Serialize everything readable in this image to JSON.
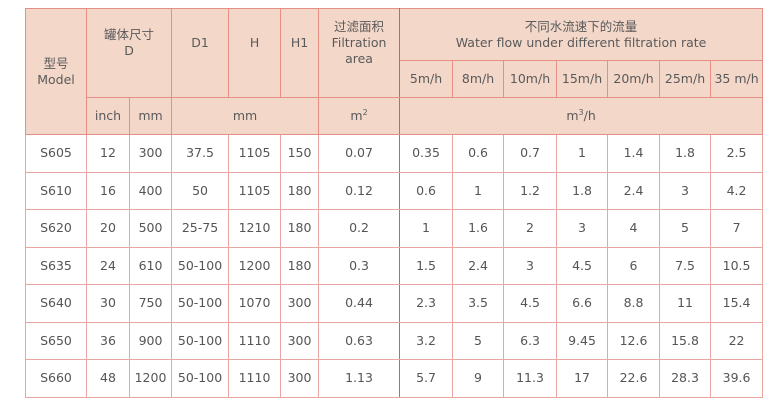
{
  "header": {
    "model": {
      "zh": "型号",
      "en": "Model"
    },
    "tank": {
      "zh": "罐体尺寸",
      "en": "D"
    },
    "d1": "D1",
    "h": "H",
    "h1": "H1",
    "area": {
      "zh": "过滤面积",
      "en1": "Filtration",
      "en2": "area"
    },
    "flow": {
      "zh": "不同水流速下的流量",
      "en": "Water flow under different filtration rate"
    },
    "rates": [
      "5m/h",
      "8m/h",
      "10m/h",
      "15m/h",
      "20m/h",
      "25m/h",
      "35 m/h"
    ],
    "units": {
      "inch": "inch",
      "mm": "mm",
      "dim_mm": "mm",
      "area": "m",
      "area_sup": "2",
      "flow": "m",
      "flow_sup": "3",
      "flow_tail": "/h"
    }
  },
  "rows": [
    [
      "S605",
      "12",
      "300",
      "37.5",
      "1105",
      "150",
      "0.07",
      "0.35",
      "0.6",
      "0.7",
      "1",
      "1.4",
      "1.8",
      "2.5"
    ],
    [
      "S610",
      "16",
      "400",
      "50",
      "1105",
      "180",
      "0.12",
      "0.6",
      "1",
      "1.2",
      "1.8",
      "2.4",
      "3",
      "4.2"
    ],
    [
      "S620",
      "20",
      "500",
      "25-75",
      "1210",
      "180",
      "0.2",
      "1",
      "1.6",
      "2",
      "3",
      "4",
      "5",
      "7"
    ],
    [
      "S635",
      "24",
      "610",
      "50-100",
      "1200",
      "180",
      "0.3",
      "1.5",
      "2.4",
      "3",
      "4.5",
      "6",
      "7.5",
      "10.5"
    ],
    [
      "S640",
      "30",
      "750",
      "50-100",
      "1070",
      "300",
      "0.44",
      "2.3",
      "3.5",
      "4.5",
      "6.6",
      "8.8",
      "11",
      "15.4"
    ],
    [
      "S650",
      "36",
      "900",
      "50-100",
      "1110",
      "300",
      "0.63",
      "3.2",
      "5",
      "6.3",
      "9.45",
      "12.6",
      "15.8",
      "22"
    ],
    [
      "S660",
      "48",
      "1200",
      "50-100",
      "1110",
      "300",
      "1.13",
      "5.7",
      "9",
      "11.3",
      "17",
      "22.6",
      "28.3",
      "39.6"
    ]
  ],
  "colors": {
    "header_bg": "#f3d7c9",
    "border": "#e58f86"
  }
}
